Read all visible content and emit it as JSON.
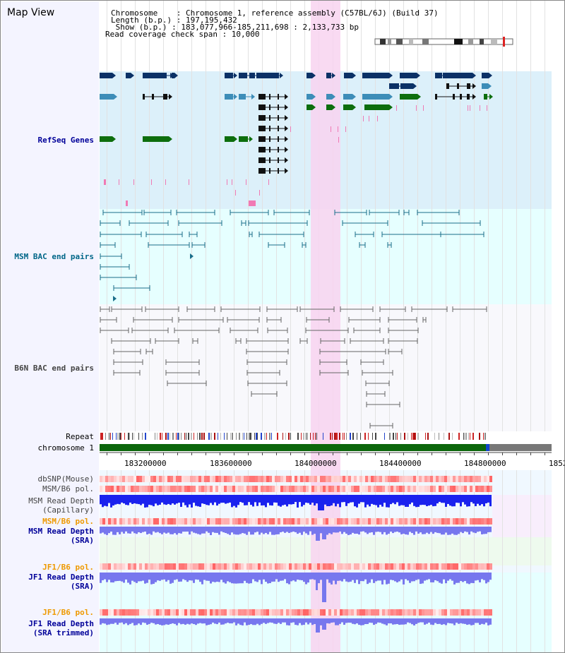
{
  "title": "Map View",
  "header": {
    "lines": [
      "Chromosome    : Chromosome 1, reference assembly (C57BL/6J) (Build 37)",
      "Length (b.p.) : 197,195,432",
      " Show (b.p.) : 183,077,966-185,211,698 : 2,133,733 bp",
      "Read coverage check span : 10,000"
    ]
  },
  "tracks": {
    "refseq": "RefSeq Genes",
    "msm_bac": "MSM BAC end pairs",
    "b6n_bac": "B6N BAC end pairs",
    "repeat": "Repeat",
    "chromosome": "chromosome 1",
    "dbsnp": "dbSNP(Mouse)",
    "msm_b6_pol_1": "MSM/B6 pol.",
    "msm_depth_cap": "MSM Read Depth\n(Capillary)",
    "msm_b6_pol_2": "MSM/B6 pol.",
    "msm_depth_sra": "MSM Read Depth\n(SRA)",
    "jf1_b6_pol_1": "JF1/B6 pol.",
    "jf1_depth_sra": "JF1 Read Depth\n(SRA)",
    "jf1_b6_pol_2": "JF1/B6 pol.",
    "jf1_depth_trim": "JF1 Read Depth\n(SRA trimmed)"
  },
  "axis": {
    "ticks": [
      "183200000",
      "183600000",
      "184000000",
      "184400000",
      "184800000",
      "1852"
    ]
  },
  "colors": {
    "refseq_bg": "#dcf0fa",
    "msm_bg": "#e6ffff",
    "b6n_bg": "#f8f8fc",
    "highlight": "#f8d4f0",
    "refseq_label": "#000099",
    "msm_label": "#006688",
    "b6n_label": "#444444",
    "pol_label": "#ee9900",
    "depth_label": "#000099"
  }
}
